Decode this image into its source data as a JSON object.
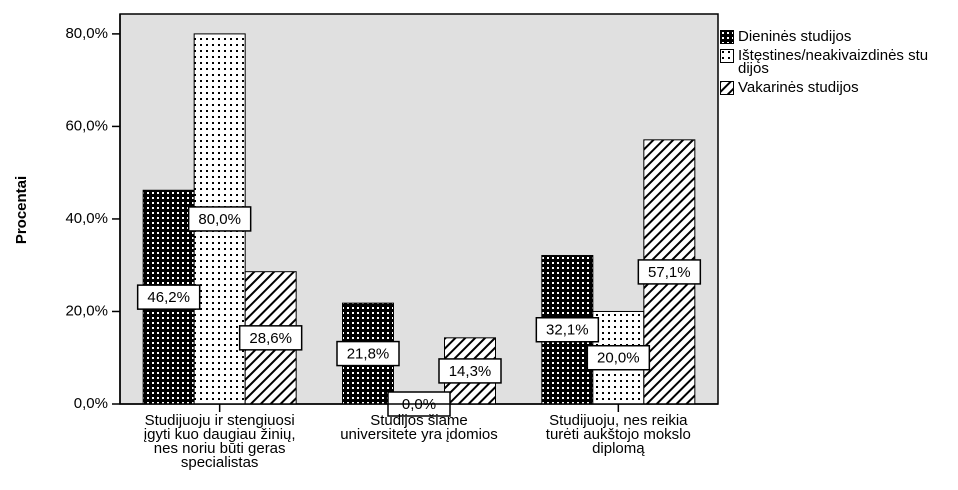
{
  "chart_data": {
    "type": "bar",
    "y_label": "Procentai",
    "categories": [
      "Studijuoju ir stengiuosi įgyti kuo daugiau žinių,  nes noriu būti geras specialistas",
      "Studijos šiame universitete yra įdomios",
      "Studijuoju, nes reikia turėti aukštojo mokslo diplomą"
    ],
    "series": [
      {
        "name": "Dieninės studijos",
        "color": "#000000",
        "values": [
          46.2,
          21.8,
          32.1
        ],
        "value_labels": [
          "46,2%",
          "21,8%",
          "32,1%"
        ]
      },
      {
        "name": "Ištęstines/neakivaizdinės studijos",
        "color": "#000000",
        "values": [
          80.0,
          0.0,
          20.0
        ],
        "value_labels": [
          "80,0%",
          "0,0%",
          "20,0%"
        ]
      },
      {
        "name": "Vakarinės studijos",
        "color": "#000000",
        "values": [
          28.6,
          14.3,
          57.1
        ],
        "value_labels": [
          "28,6%",
          "14,3%",
          "57,1%"
        ]
      }
    ],
    "ylim": [
      0,
      84.3
    ],
    "yticks": [
      {
        "value": 0,
        "label": "0,0%"
      },
      {
        "value": 20,
        "label": "20,0%"
      },
      {
        "value": 40,
        "label": "40,0%"
      },
      {
        "value": 60,
        "label": "60,0%"
      },
      {
        "value": 80,
        "label": "80,0%"
      }
    ],
    "legend": "right"
  }
}
